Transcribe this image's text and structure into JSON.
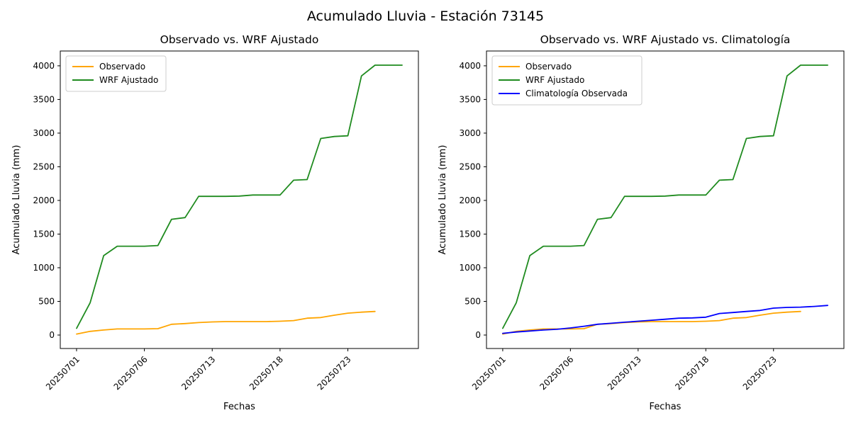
{
  "figure": {
    "suptitle": "Acumulado Lluvia - Estación 73145",
    "background": "#ffffff"
  },
  "colors": {
    "axis": "#000000",
    "legend_border": "#cccccc",
    "observado": "#ffa500",
    "wrf_ajustado": "#1f8b1f",
    "climatologia": "#0000ff"
  },
  "chart_data": [
    {
      "id": "left-chart",
      "type": "line",
      "title": "Observado vs. WRF Ajustado",
      "xlabel": "Fechas",
      "ylabel": "Acumulado Lluvia (mm)",
      "xlim": [
        -1.2,
        25.2
      ],
      "ylim": [
        -200,
        4220
      ],
      "x_tick_positions": [
        0,
        5,
        10,
        15,
        20
      ],
      "x_tick_labels": [
        "20250701",
        "20250706",
        "20250713",
        "20250718",
        "20250723"
      ],
      "y_ticks": [
        0,
        500,
        1000,
        1500,
        2000,
        2500,
        3000,
        3500,
        4000
      ],
      "grid": false,
      "legend": {
        "position": "upper-left",
        "entries": [
          "Observado",
          "WRF Ajustado"
        ]
      },
      "series": [
        {
          "name": "Observado",
          "color": "#ffa500",
          "values": [
            15,
            55,
            75,
            90,
            90,
            90,
            95,
            160,
            170,
            185,
            195,
            200,
            200,
            200,
            200,
            205,
            215,
            250,
            260,
            295,
            325,
            340,
            350
          ]
        },
        {
          "name": "WRF Ajustado",
          "color": "#1f8b1f",
          "values": [
            100,
            480,
            1180,
            1320,
            1320,
            1320,
            1330,
            1720,
            1745,
            2060,
            2060,
            2060,
            2065,
            2080,
            2080,
            2080,
            2300,
            2310,
            2920,
            2950,
            2960,
            3850,
            4010,
            4010,
            4010
          ]
        }
      ]
    },
    {
      "id": "right-chart",
      "type": "line",
      "title": "Observado vs. WRF Ajustado vs. Climatología",
      "xlabel": "Fechas",
      "ylabel": "Acumulado Lluvia (mm)",
      "xlim": [
        -1.2,
        25.2
      ],
      "ylim": [
        -200,
        4220
      ],
      "x_tick_positions": [
        0,
        5,
        10,
        15,
        20
      ],
      "x_tick_labels": [
        "20250701",
        "20250706",
        "20250713",
        "20250718",
        "20250723"
      ],
      "y_ticks": [
        0,
        500,
        1000,
        1500,
        2000,
        2500,
        3000,
        3500,
        4000
      ],
      "grid": false,
      "legend": {
        "position": "upper-left",
        "entries": [
          "Observado",
          "WRF Ajustado",
          "Climatología Observada"
        ]
      },
      "series": [
        {
          "name": "Observado",
          "color": "#ffa500",
          "values": [
            15,
            55,
            75,
            90,
            90,
            90,
            95,
            160,
            170,
            185,
            195,
            200,
            200,
            200,
            200,
            205,
            215,
            250,
            260,
            295,
            325,
            340,
            350
          ]
        },
        {
          "name": "WRF Ajustado",
          "color": "#1f8b1f",
          "values": [
            100,
            480,
            1180,
            1320,
            1320,
            1320,
            1330,
            1720,
            1745,
            2060,
            2060,
            2060,
            2065,
            2080,
            2080,
            2080,
            2300,
            2310,
            2920,
            2950,
            2960,
            3850,
            4010,
            4010,
            4010
          ]
        },
        {
          "name": "Climatología Observada",
          "color": "#0000ff",
          "values": [
            25,
            45,
            60,
            75,
            85,
            105,
            130,
            160,
            175,
            190,
            205,
            220,
            235,
            250,
            255,
            265,
            320,
            335,
            350,
            365,
            400,
            410,
            415,
            425,
            440
          ]
        }
      ]
    }
  ]
}
